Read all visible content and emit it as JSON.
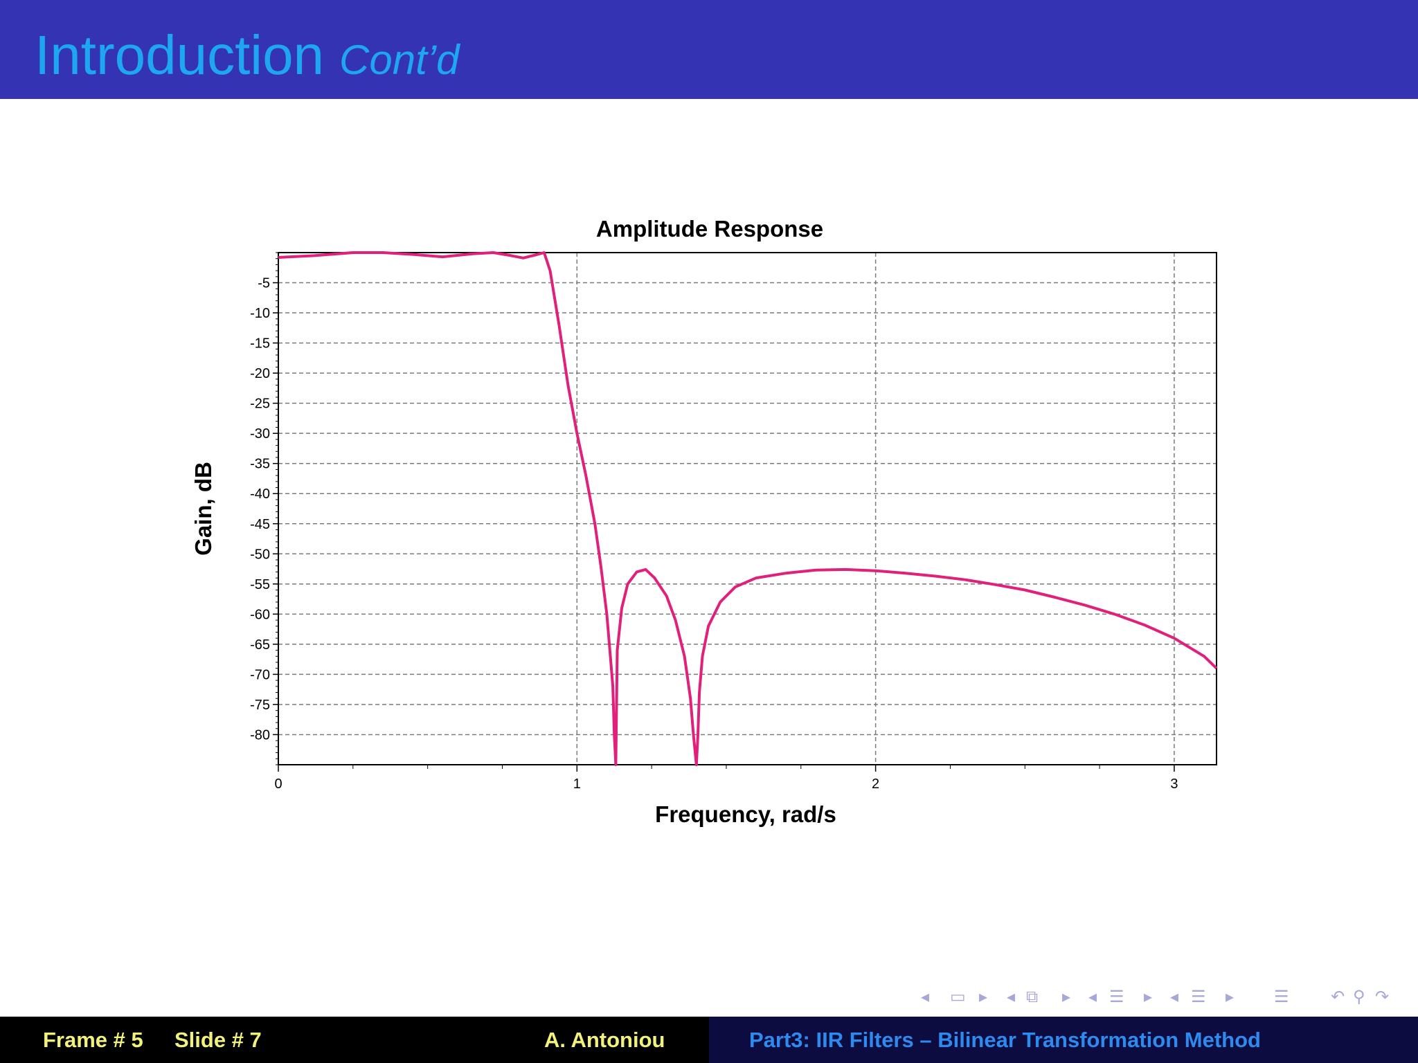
{
  "slide": {
    "title": "Introduction",
    "subtitle": "Cont’d"
  },
  "chart_data": {
    "type": "line",
    "title": "Amplitude Response",
    "xlabel": "Frequency, rad/s",
    "ylabel": "Gain, dB",
    "xlim": [
      0,
      3.1416
    ],
    "ylim": [
      -85,
      0
    ],
    "x_ticks": [
      0,
      1,
      2,
      3
    ],
    "y_ticks": [
      -5,
      -10,
      -15,
      -20,
      -25,
      -30,
      -35,
      -40,
      -45,
      -50,
      -55,
      -60,
      -65,
      -70,
      -75,
      -80
    ],
    "grid": true,
    "series": [
      {
        "color": "#e0207a",
        "x": [
          0,
          0.12,
          0.25,
          0.35,
          0.45,
          0.55,
          0.65,
          0.72,
          0.78,
          0.82,
          0.86,
          0.89,
          0.91,
          0.94,
          0.97,
          1.0,
          1.03,
          1.06,
          1.08,
          1.1,
          1.11,
          1.12,
          1.125,
          1.13,
          1.135,
          1.15,
          1.17,
          1.2,
          1.23,
          1.26,
          1.3,
          1.33,
          1.36,
          1.38,
          1.39,
          1.4,
          1.405,
          1.41,
          1.42,
          1.44,
          1.48,
          1.53,
          1.6,
          1.7,
          1.8,
          1.9,
          2.0,
          2.1,
          2.2,
          2.3,
          2.4,
          2.5,
          2.6,
          2.7,
          2.8,
          2.9,
          3.0,
          3.1,
          3.1416
        ],
        "y": [
          -0.8,
          -0.5,
          0,
          0,
          -0.3,
          -0.7,
          -0.2,
          0,
          -0.5,
          -0.9,
          -0.4,
          0,
          -3,
          -12,
          -22,
          -30,
          -37,
          -45,
          -52,
          -60,
          -66,
          -72,
          -80,
          -85,
          -66,
          -59,
          -55,
          -53,
          -52.6,
          -54,
          -57,
          -61,
          -67,
          -74,
          -80,
          -85,
          -80,
          -73,
          -67,
          -62,
          -58,
          -55.5,
          -54,
          -53.2,
          -52.7,
          -52.6,
          -52.8,
          -53.2,
          -53.7,
          -54.3,
          -55.1,
          -56,
          -57.2,
          -58.5,
          -60,
          -61.8,
          -64,
          -67,
          -69
        ]
      }
    ]
  },
  "footer": {
    "frame": "Frame # 5",
    "slide_number": "Slide # 7",
    "author": "A. Antoniou",
    "section": "Part3: IIR Filters – Bilinear Transformation Method"
  }
}
